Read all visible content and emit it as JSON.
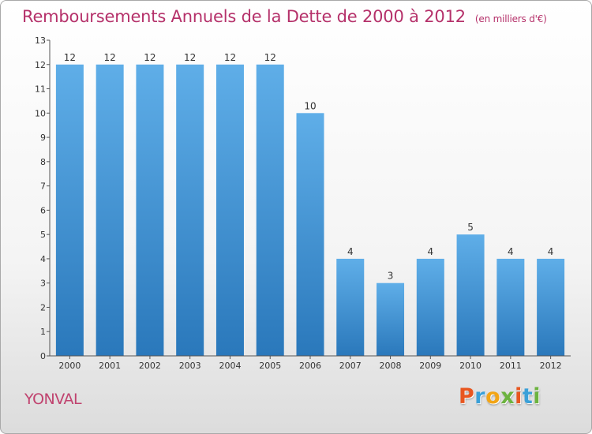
{
  "chart_data": {
    "type": "bar",
    "title": "Remboursements Annuels de la Dette de 2000 à 2012",
    "unit": "(en milliers d'€)",
    "categories": [
      "2000",
      "2001",
      "2002",
      "2003",
      "2004",
      "2005",
      "2006",
      "2007",
      "2008",
      "2009",
      "2010",
      "2011",
      "2012"
    ],
    "values": [
      12,
      12,
      12,
      12,
      12,
      12,
      10,
      4,
      3,
      4,
      5,
      4,
      4
    ],
    "ylim": [
      0,
      13
    ],
    "yticks": [
      0,
      1,
      2,
      3,
      4,
      5,
      6,
      7,
      8,
      9,
      10,
      11,
      12,
      13
    ],
    "grid": false,
    "legend": "none",
    "bar_color_top": "#5faee8",
    "bar_color_bottom": "#2a78bb"
  },
  "footer": {
    "commune": "YONVAL",
    "logo_letters": [
      "P",
      "r",
      "o",
      "x",
      "i",
      "t",
      "i"
    ],
    "logo_colors": [
      "#e8561f",
      "#3aa0d8",
      "#f2a516",
      "#6cb33f",
      "#e8561f",
      "#3aa0d8",
      "#6cb33f"
    ]
  }
}
